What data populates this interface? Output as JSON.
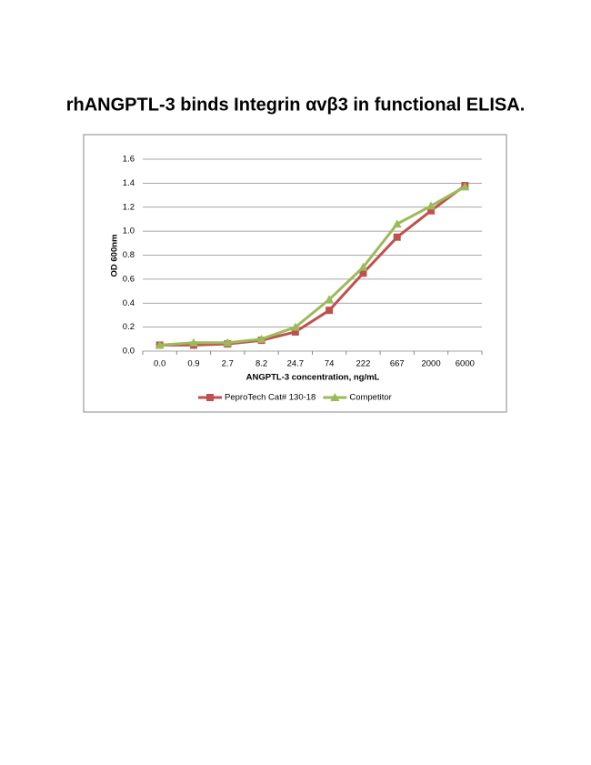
{
  "chart_data": {
    "type": "line",
    "title": "rhANGPTL-3 binds Integrin αvβ3 in functional ELISA.",
    "x_label": "ANGPTL-3 concentration, ng/mL",
    "y_label": "OD 600nm",
    "categories": [
      "0.0",
      "0.9",
      "2.7",
      "8.2",
      "24.7",
      "74",
      "222",
      "667",
      "2000",
      "6000"
    ],
    "series": [
      {
        "name": "PeproTech Cat# 130-18",
        "color": "#c0504d",
        "marker": "square",
        "values": [
          0.05,
          0.05,
          0.06,
          0.09,
          0.16,
          0.34,
          0.65,
          0.95,
          1.17,
          1.38
        ]
      },
      {
        "name": "Competitor",
        "color": "#9bbb59",
        "marker": "triangle",
        "values": [
          0.05,
          0.07,
          0.07,
          0.1,
          0.2,
          0.43,
          0.7,
          1.06,
          1.21,
          1.37
        ]
      }
    ],
    "ylim": [
      0,
      1.6
    ],
    "yticks": [
      {
        "value": 0,
        "label": "0.0"
      },
      0.2,
      0.4,
      0.6,
      0.8,
      {
        "value": 1,
        "label": "1.0"
      },
      1.2,
      1.4,
      1.6
    ],
    "grid": true,
    "legend": "bottom"
  }
}
